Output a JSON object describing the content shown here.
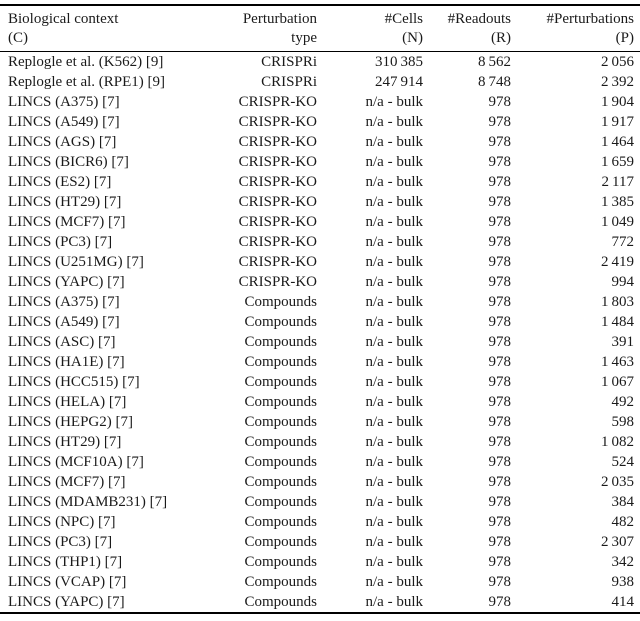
{
  "table": {
    "columns": [
      {
        "id": "context",
        "line1": "Biological context",
        "line2": "(C)"
      },
      {
        "id": "perturbation_type",
        "line1": "Perturbation",
        "line2": "type"
      },
      {
        "id": "cells",
        "line1": "#Cells",
        "line2": "(N)"
      },
      {
        "id": "readouts",
        "line1": "#Readouts",
        "line2": "(R)"
      },
      {
        "id": "perturbations",
        "line1": "#Perturbations",
        "line2": "(P)"
      }
    ],
    "rows": [
      {
        "context": "Replogle et al. (K562) [9]",
        "perturbation_type": "CRISPRi",
        "cells": "310 385",
        "readouts": "8 562",
        "perturbations": "2 056"
      },
      {
        "context": "Replogle et al. (RPE1) [9]",
        "perturbation_type": "CRISPRi",
        "cells": "247 914",
        "readouts": "8 748",
        "perturbations": "2 392"
      },
      {
        "context": "LINCS (A375) [7]",
        "perturbation_type": "CRISPR-KO",
        "cells": "n/a - bulk",
        "readouts": "978",
        "perturbations": "1 904"
      },
      {
        "context": "LINCS (A549) [7]",
        "perturbation_type": "CRISPR-KO",
        "cells": "n/a - bulk",
        "readouts": "978",
        "perturbations": "1 917"
      },
      {
        "context": "LINCS (AGS) [7]",
        "perturbation_type": "CRISPR-KO",
        "cells": "n/a - bulk",
        "readouts": "978",
        "perturbations": "1 464"
      },
      {
        "context": "LINCS (BICR6) [7]",
        "perturbation_type": "CRISPR-KO",
        "cells": "n/a - bulk",
        "readouts": "978",
        "perturbations": "1 659"
      },
      {
        "context": "LINCS (ES2) [7]",
        "perturbation_type": "CRISPR-KO",
        "cells": "n/a - bulk",
        "readouts": "978",
        "perturbations": "2 117"
      },
      {
        "context": "LINCS (HT29) [7]",
        "perturbation_type": "CRISPR-KO",
        "cells": "n/a - bulk",
        "readouts": "978",
        "perturbations": "1 385"
      },
      {
        "context": "LINCS (MCF7) [7]",
        "perturbation_type": "CRISPR-KO",
        "cells": "n/a - bulk",
        "readouts": "978",
        "perturbations": "1 049"
      },
      {
        "context": "LINCS (PC3) [7]",
        "perturbation_type": "CRISPR-KO",
        "cells": "n/a - bulk",
        "readouts": "978",
        "perturbations": "772"
      },
      {
        "context": "LINCS (U251MG) [7]",
        "perturbation_type": "CRISPR-KO",
        "cells": "n/a - bulk",
        "readouts": "978",
        "perturbations": "2 419"
      },
      {
        "context": "LINCS (YAPC) [7]",
        "perturbation_type": "CRISPR-KO",
        "cells": "n/a - bulk",
        "readouts": "978",
        "perturbations": "994"
      },
      {
        "context": "LINCS (A375) [7]",
        "perturbation_type": "Compounds",
        "cells": "n/a - bulk",
        "readouts": "978",
        "perturbations": "1 803"
      },
      {
        "context": "LINCS (A549) [7]",
        "perturbation_type": "Compounds",
        "cells": "n/a - bulk",
        "readouts": "978",
        "perturbations": "1 484"
      },
      {
        "context": "LINCS (ASC) [7]",
        "perturbation_type": "Compounds",
        "cells": "n/a - bulk",
        "readouts": "978",
        "perturbations": "391"
      },
      {
        "context": "LINCS (HA1E) [7]",
        "perturbation_type": "Compounds",
        "cells": "n/a - bulk",
        "readouts": "978",
        "perturbations": "1 463"
      },
      {
        "context": "LINCS (HCC515) [7]",
        "perturbation_type": "Compounds",
        "cells": "n/a - bulk",
        "readouts": "978",
        "perturbations": "1 067"
      },
      {
        "context": "LINCS (HELA) [7]",
        "perturbation_type": "Compounds",
        "cells": "n/a - bulk",
        "readouts": "978",
        "perturbations": "492"
      },
      {
        "context": "LINCS (HEPG2) [7]",
        "perturbation_type": "Compounds",
        "cells": "n/a - bulk",
        "readouts": "978",
        "perturbations": "598"
      },
      {
        "context": "LINCS (HT29) [7]",
        "perturbation_type": "Compounds",
        "cells": "n/a - bulk",
        "readouts": "978",
        "perturbations": "1 082"
      },
      {
        "context": "LINCS (MCF10A) [7]",
        "perturbation_type": "Compounds",
        "cells": "n/a - bulk",
        "readouts": "978",
        "perturbations": "524"
      },
      {
        "context": "LINCS (MCF7) [7]",
        "perturbation_type": "Compounds",
        "cells": "n/a - bulk",
        "readouts": "978",
        "perturbations": "2 035"
      },
      {
        "context": "LINCS (MDAMB231) [7]",
        "perturbation_type": "Compounds",
        "cells": "n/a - bulk",
        "readouts": "978",
        "perturbations": "384"
      },
      {
        "context": "LINCS (NPC) [7]",
        "perturbation_type": "Compounds",
        "cells": "n/a - bulk",
        "readouts": "978",
        "perturbations": "482"
      },
      {
        "context": "LINCS (PC3) [7]",
        "perturbation_type": "Compounds",
        "cells": "n/a - bulk",
        "readouts": "978",
        "perturbations": "2 307"
      },
      {
        "context": "LINCS (THP1) [7]",
        "perturbation_type": "Compounds",
        "cells": "n/a - bulk",
        "readouts": "978",
        "perturbations": "342"
      },
      {
        "context": "LINCS (VCAP) [7]",
        "perturbation_type": "Compounds",
        "cells": "n/a - bulk",
        "readouts": "978",
        "perturbations": "938"
      },
      {
        "context": "LINCS (YAPC) [7]",
        "perturbation_type": "Compounds",
        "cells": "n/a - bulk",
        "readouts": "978",
        "perturbations": "414"
      }
    ]
  },
  "chart_data": {
    "type": "table",
    "title": "",
    "column_headers": [
      "Biological context (C)",
      "Perturbation type",
      "#Cells (N)",
      "#Readouts (R)",
      "#Perturbations (P)"
    ]
  },
  "colors": {
    "text": "#1a1a1a",
    "rule": "#000000",
    "background": "#ffffff"
  }
}
